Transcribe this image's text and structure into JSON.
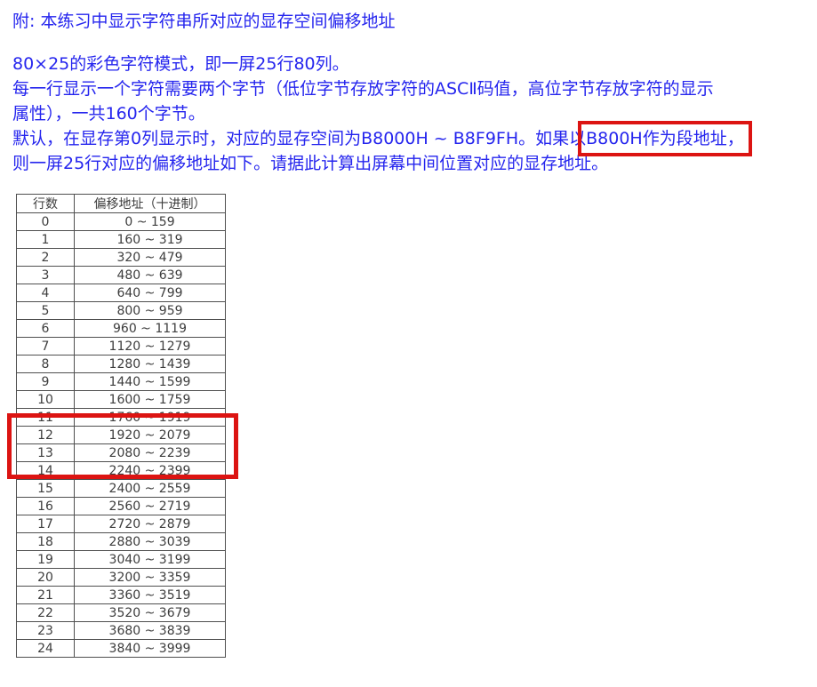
{
  "note": {
    "title": "附: 本练习中显示字符串所对应的显存空间偏移地址",
    "line1": "80×25的彩色字符模式，即一屏25行80列。",
    "line2": "每一行显示一个字符需要两个字节（低位字节存放字符的ASCⅡ码值，高位字节存放字符的显示",
    "line3": "属性），一共160个字节。",
    "line4_pre": "默认，在显存第0列显示时，对应的显存空间为B8000H ~ B8F9FH。如果以",
    "line4_highlighted": "B800H作为段地址，",
    "line5": "则一屏25行对应的偏移地址如下。请据此计算出屏幕中间位置对应的显存地址。"
  },
  "table": {
    "headers": [
      "行数",
      "偏移地址（十进制）"
    ],
    "rows": [
      {
        "row": "0",
        "offset": "0 ~ 159"
      },
      {
        "row": "1",
        "offset": "160 ~ 319"
      },
      {
        "row": "2",
        "offset": "320 ~ 479"
      },
      {
        "row": "3",
        "offset": "480 ~ 639"
      },
      {
        "row": "4",
        "offset": "640 ~ 799"
      },
      {
        "row": "5",
        "offset": "800 ~ 959"
      },
      {
        "row": "6",
        "offset": "960 ~ 1119"
      },
      {
        "row": "7",
        "offset": "1120 ~ 1279"
      },
      {
        "row": "8",
        "offset": "1280 ~ 1439"
      },
      {
        "row": "9",
        "offset": "1440 ~ 1599"
      },
      {
        "row": "10",
        "offset": "1600 ~ 1759"
      },
      {
        "row": "11",
        "offset": "1760 ~ 1919"
      },
      {
        "row": "12",
        "offset": "1920 ~ 2079"
      },
      {
        "row": "13",
        "offset": "2080 ~ 2239"
      },
      {
        "row": "14",
        "offset": "2240 ~ 2399"
      },
      {
        "row": "15",
        "offset": "2400 ~ 2559"
      },
      {
        "row": "16",
        "offset": "2560 ~ 2719"
      },
      {
        "row": "17",
        "offset": "2720 ~ 2879"
      },
      {
        "row": "18",
        "offset": "2880 ~ 3039"
      },
      {
        "row": "19",
        "offset": "3040 ~ 3199"
      },
      {
        "row": "20",
        "offset": "3200 ~ 3359"
      },
      {
        "row": "21",
        "offset": "3360 ~ 3519"
      },
      {
        "row": "22",
        "offset": "3520 ~ 3679"
      },
      {
        "row": "23",
        "offset": "3680 ~ 3839"
      },
      {
        "row": "24",
        "offset": "3840 ~ 3999"
      }
    ],
    "highlighted_rows": [
      "11",
      "12",
      "13"
    ]
  },
  "colors": {
    "note_text_blue": "#2525ee",
    "table_text_gray": "#3d3d3d",
    "table_border_gray": "#4f4f4f",
    "highlight_box_red": "#dc1412",
    "background": "#ffffff"
  }
}
